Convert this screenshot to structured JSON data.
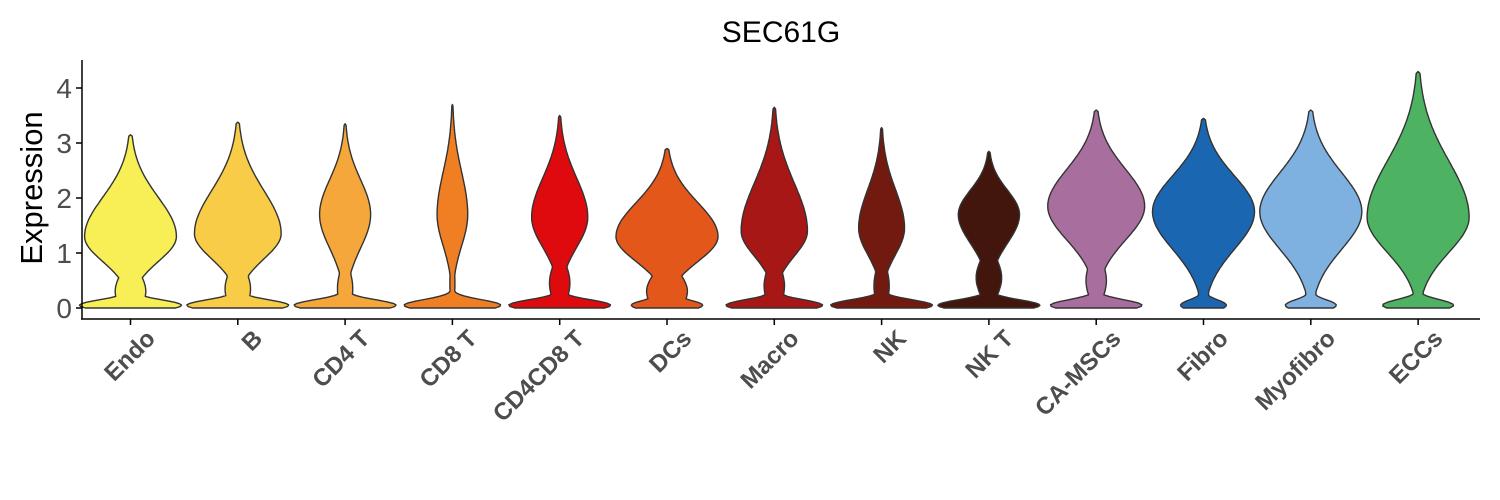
{
  "chart_data": {
    "type": "violin",
    "title": "SEC61G",
    "xlabel": "",
    "ylabel": "Expression",
    "ylim": [
      -0.2,
      4.45
    ],
    "yticks": [
      "0",
      "1",
      "2",
      "3",
      "4"
    ],
    "grid": false,
    "legend": "none",
    "categories": [
      "Endo",
      "B",
      "CD4 T",
      "CD8 T",
      "CD4CD8 T",
      "DCs",
      "Macro",
      "NK",
      "NK T",
      "CA-MSCs",
      "Fibro",
      "Myofibro",
      "ECCs"
    ],
    "series": [
      {
        "category": "Endo",
        "color": "#F7EF55",
        "max": 3.15,
        "low_mode": 0.05,
        "neck": 0.3,
        "high_mode": 1.3,
        "low_width": 1.0,
        "neck_width": 0.3,
        "high_width": 0.9
      },
      {
        "category": "B",
        "color": "#F8CC46",
        "max": 3.38,
        "low_mode": 0.05,
        "neck": 0.35,
        "high_mode": 1.35,
        "low_width": 1.0,
        "neck_width": 0.25,
        "high_width": 0.85
      },
      {
        "category": "CD4 T",
        "color": "#F5A73B",
        "max": 3.35,
        "low_mode": 0.05,
        "neck": 0.35,
        "high_mode": 1.7,
        "low_width": 1.0,
        "neck_width": 0.15,
        "high_width": 0.5
      },
      {
        "category": "CD8 T",
        "color": "#F07F24",
        "max": 3.7,
        "low_mode": 0.05,
        "neck": 0.45,
        "high_mode": 1.7,
        "low_width": 0.95,
        "neck_width": 0.05,
        "high_width": 0.3
      },
      {
        "category": "CD4CD8 T",
        "color": "#DF0A0E",
        "max": 3.5,
        "low_mode": 0.05,
        "neck": 0.45,
        "high_mode": 1.65,
        "low_width": 1.0,
        "neck_width": 0.2,
        "high_width": 0.55
      },
      {
        "category": "DCs",
        "color": "#E4571B",
        "max": 2.9,
        "low_mode": 0.05,
        "neck": 0.3,
        "high_mode": 1.3,
        "low_width": 0.7,
        "neck_width": 0.4,
        "high_width": 1.0
      },
      {
        "category": "Macro",
        "color": "#A61716",
        "max": 3.65,
        "low_mode": 0.05,
        "neck": 0.4,
        "high_mode": 1.4,
        "low_width": 0.95,
        "neck_width": 0.2,
        "high_width": 0.65
      },
      {
        "category": "NK",
        "color": "#731A10",
        "max": 3.28,
        "low_mode": 0.05,
        "neck": 0.4,
        "high_mode": 1.45,
        "low_width": 1.0,
        "neck_width": 0.15,
        "high_width": 0.45
      },
      {
        "category": "NK T",
        "color": "#42160D",
        "max": 2.85,
        "low_mode": 0.05,
        "neck": 0.55,
        "high_mode": 1.7,
        "low_width": 1.0,
        "neck_width": 0.25,
        "high_width": 0.6
      },
      {
        "category": "CA-MSCs",
        "color": "#A86F9E",
        "max": 3.6,
        "low_mode": 0.05,
        "neck": 0.5,
        "high_mode": 1.85,
        "low_width": 0.9,
        "neck_width": 0.2,
        "high_width": 0.95
      },
      {
        "category": "Fibro",
        "color": "#1B66B0",
        "max": 3.45,
        "low_mode": 0.05,
        "neck": 0.25,
        "high_mode": 1.75,
        "low_width": 0.45,
        "neck_width": 0.1,
        "high_width": 1.0
      },
      {
        "category": "Myofibro",
        "color": "#7EB1DF",
        "max": 3.6,
        "low_mode": 0.05,
        "neck": 0.25,
        "high_mode": 1.75,
        "low_width": 0.5,
        "neck_width": 0.1,
        "high_width": 1.0
      },
      {
        "category": "ECCs",
        "color": "#4EB263",
        "max": 4.3,
        "low_mode": 0.05,
        "neck": 0.25,
        "high_mode": 1.65,
        "low_width": 0.7,
        "neck_width": 0.1,
        "high_width": 1.0
      }
    ]
  }
}
